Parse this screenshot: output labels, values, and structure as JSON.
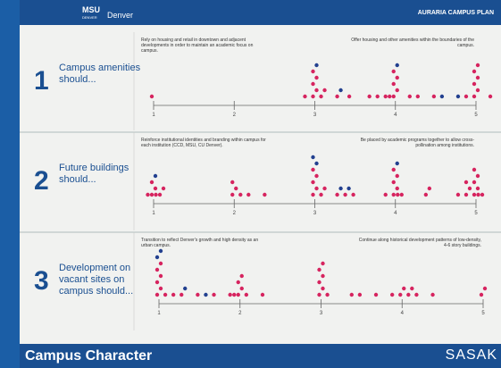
{
  "header": {
    "logos": [
      "MSU",
      "DENVER",
      "Denver"
    ],
    "title": "AURARIA CAMPUS PLAN"
  },
  "footer": {
    "title": "Campus Character",
    "brand": "SASAK"
  },
  "scale_lim": [
    1,
    5
  ],
  "scale_ticks": [
    1,
    2,
    3,
    4,
    5
  ],
  "rows": [
    {
      "number": "1",
      "label": "Campus amenities should...",
      "left": "Rely on housing and retail in downtown and adjacent developments in order to maintain an academic focus on campus.",
      "right": "Offer housing and other amenities within the boundaries of the campus.",
      "series": [
        {
          "color": "#d6245f",
          "values": [
            1,
            2.9,
            3,
            3,
            3,
            3,
            3,
            3.1,
            3.1,
            3.3,
            3.45,
            3.7,
            3.8,
            3.9,
            3.95,
            4,
            4,
            4,
            4,
            4,
            4.2,
            4.3,
            4.5,
            4.9,
            5,
            5,
            5,
            5,
            5,
            5,
            5.2
          ]
        },
        {
          "color": "#22408f",
          "values": [
            3,
            3.3,
            4,
            4.6,
            4.8
          ]
        }
      ]
    },
    {
      "number": "2",
      "label": "Future buildings should...",
      "left": "Reinforce institutional identities and branding within campus for each institution (CCD, MSU, CU Denver).",
      "right": "Be placed by academic programs together to allow cross-pollination among institutions.",
      "series": [
        {
          "color": "#d6245f",
          "values": [
            0.95,
            1,
            1,
            1,
            1.05,
            1.1,
            1.1,
            2,
            2,
            2,
            2.1,
            2.2,
            2.4,
            3,
            3,
            3,
            3,
            3,
            3.1,
            3.1,
            3.3,
            3.4,
            3.5,
            3.9,
            4,
            4,
            4,
            4,
            4,
            4.05,
            4.1,
            4.4,
            4.4,
            4.8,
            4.9,
            4.9,
            4.9,
            5,
            5,
            5,
            5,
            5,
            5.05,
            5.1
          ]
        },
        {
          "color": "#22408f",
          "values": [
            1,
            3,
            3,
            3.3,
            3.4,
            4
          ]
        }
      ]
    },
    {
      "number": "3",
      "label": "Development on vacant sites on campus should...",
      "left": "Transition to reflect Denver's growth and high density as an urban campus.",
      "right": "Continue along historical development patterns of low-density, 4-6 story buildings.",
      "series": [
        {
          "color": "#d6245f",
          "values": [
            1,
            1,
            1,
            1,
            1,
            1,
            1.1,
            1.2,
            1.3,
            1.5,
            1.7,
            1.9,
            1.95,
            2,
            2,
            2,
            2,
            2.1,
            2.3,
            3,
            3,
            3,
            3,
            3,
            3,
            3.1,
            3.4,
            3.5,
            3.7,
            3.9,
            4,
            4,
            4.1,
            4.1,
            4.2,
            4.4,
            5,
            5
          ]
        },
        {
          "color": "#22408f",
          "values": [
            1,
            1,
            1.3,
            1.6
          ]
        }
      ]
    }
  ]
}
